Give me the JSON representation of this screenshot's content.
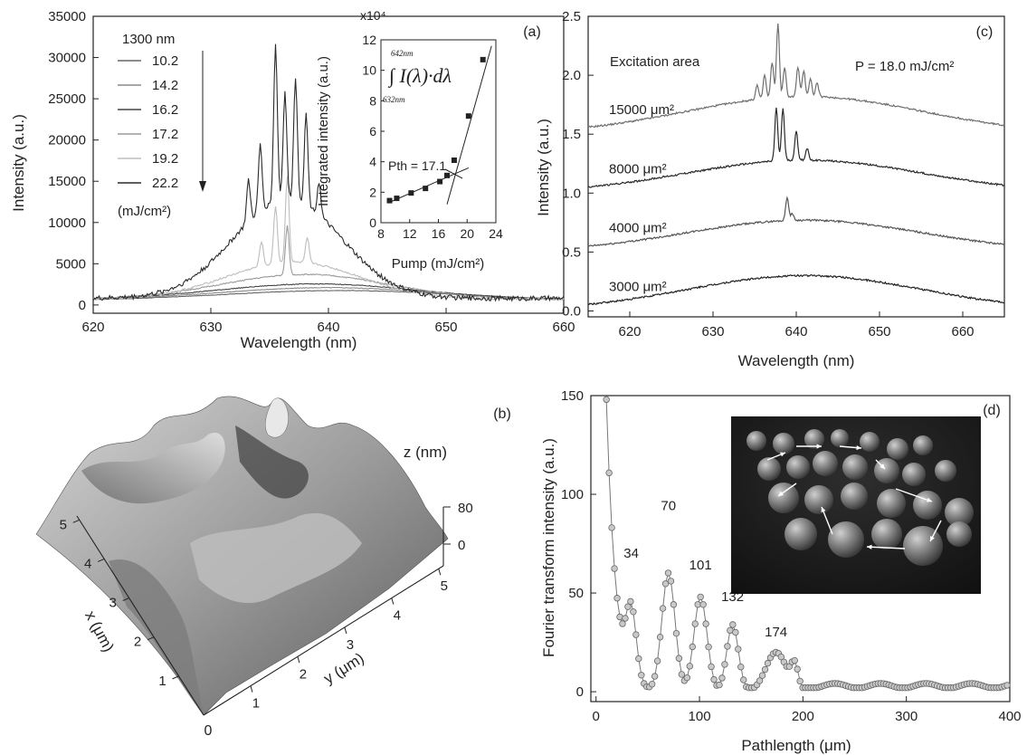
{
  "figure": {
    "panel_labels": [
      "(a)",
      "(b)",
      "(c)",
      "(d)"
    ]
  },
  "chart_data": [
    {
      "panel": "(a)",
      "type": "line",
      "xlabel": "Wavelength (nm)",
      "ylabel": "Intensity (a.u.)",
      "xlim": [
        620,
        660
      ],
      "ylim": [
        -1000,
        35000
      ],
      "xticks": [
        620,
        630,
        640,
        650,
        660
      ],
      "yticks": [
        0,
        5000,
        10000,
        15000,
        20000,
        25000,
        30000,
        35000
      ],
      "legend_title": "1300 nm",
      "legend_unit": "(mJ/cm²)",
      "series": [
        {
          "name": "10.2",
          "color": "#666666",
          "center": 641,
          "amp": 1200,
          "width": 14,
          "base": 550,
          "peaks": []
        },
        {
          "name": "14.2",
          "color": "#8a8a8a",
          "center": 640,
          "amp": 1500,
          "width": 13,
          "base": 600,
          "peaks": []
        },
        {
          "name": "16.2",
          "color": "#444444",
          "center": 639,
          "amp": 1900,
          "width": 12,
          "base": 650,
          "peaks": []
        },
        {
          "name": "17.2",
          "color": "#9a9a9a",
          "center": 638,
          "amp": 3000,
          "width": 10,
          "base": 700,
          "peaks": [
            [
              636.5,
              6000
            ]
          ]
        },
        {
          "name": "19.2",
          "color": "#bdbdbd",
          "center": 637,
          "amp": 4500,
          "width": 8,
          "base": 700,
          "peaks": [
            [
              634.3,
              3000
            ],
            [
              635.5,
              7000
            ],
            [
              636.5,
              10500
            ],
            [
              638.2,
              3000
            ]
          ]
        },
        {
          "name": "22.2",
          "color": "#2a2a2a",
          "center": 636.5,
          "amp": 12000,
          "width": 6.5,
          "base": 800,
          "peaks": [
            [
              633.2,
              5000
            ],
            [
              634.2,
              8000
            ],
            [
              635.5,
              19000
            ],
            [
              636.3,
              13000
            ],
            [
              637.2,
              15000
            ],
            [
              638.1,
              11000
            ],
            [
              639.2,
              4000
            ]
          ]
        }
      ],
      "inset": {
        "xlabel": "Pump (mJ/cm²)",
        "ylabel": "Integrated intensity (a.u.)",
        "multiplier": "x10⁴",
        "xlim": [
          8,
          24
        ],
        "ylim": [
          0,
          12
        ],
        "xticks": [
          8,
          12,
          16,
          20,
          24
        ],
        "yticks": [
          0,
          2,
          4,
          6,
          8,
          10,
          12
        ],
        "formula": "∫ I(λ)·dλ",
        "formula_upper": "642nm",
        "formula_lower": "632nm",
        "threshold_label": "Pth = 17.1",
        "threshold": 17.1,
        "points_x": [
          9.2,
          10.2,
          12.2,
          14.2,
          16.2,
          17.2,
          18.2,
          20.2,
          22.2
        ],
        "points_y": [
          1.45,
          1.6,
          1.95,
          2.25,
          2.7,
          3.1,
          4.1,
          7.0,
          10.7
        ]
      }
    },
    {
      "panel": "(b)",
      "type": "surface",
      "xlabel": "x (μm)",
      "ylabel": "y (μm)",
      "zlabel": "z (nm)",
      "x_ticks": [
        1,
        2,
        3,
        4,
        5
      ],
      "y_ticks": [
        1,
        2,
        3,
        4,
        5
      ],
      "z_ticks": [
        0,
        80
      ],
      "origin_label": "0"
    },
    {
      "panel": "(c)",
      "type": "line",
      "xlabel": "Wavelength (nm)",
      "ylabel": "Intensity (a.u.)",
      "xlim": [
        615,
        665
      ],
      "ylim": [
        -0.05,
        2.5
      ],
      "xticks": [
        620,
        630,
        640,
        650,
        660
      ],
      "yticks": [
        0.0,
        0.5,
        1.0,
        1.5,
        2.0,
        2.5
      ],
      "annotation_title": "Excitation area",
      "annotation_pump": "P = 18.0 mJ/cm²",
      "series": [
        {
          "name": "15000 μm²",
          "color": "#6f6f6f",
          "base": 1.5,
          "amp": 0.32,
          "peaks": [
            [
              635.3,
              0.12
            ],
            [
              636.2,
              0.2
            ],
            [
              637.1,
              0.3
            ],
            [
              637.8,
              0.62
            ],
            [
              638.6,
              0.25
            ],
            [
              640.2,
              0.25
            ],
            [
              640.9,
              0.22
            ],
            [
              641.7,
              0.15
            ],
            [
              642.5,
              0.12
            ]
          ]
        },
        {
          "name": "8000 μm²",
          "color": "#2a2a2a",
          "base": 1.0,
          "amp": 0.28,
          "peaks": [
            [
              637.6,
              0.45
            ],
            [
              638.4,
              0.45
            ],
            [
              640.0,
              0.25
            ],
            [
              641.3,
              0.1
            ]
          ]
        },
        {
          "name": "4000 μm²",
          "color": "#555555",
          "base": 0.5,
          "amp": 0.27,
          "peaks": [
            [
              638.9,
              0.2
            ],
            [
              639.5,
              0.06
            ]
          ]
        },
        {
          "name": "3000 μm²",
          "color": "#222222",
          "base": 0.0,
          "amp": 0.3,
          "peaks": []
        }
      ]
    },
    {
      "panel": "(d)",
      "type": "scatter",
      "xlabel": "Pathlength (μm)",
      "ylabel": "Fourier transform intensity (a.u.)",
      "xlim": [
        -5,
        400
      ],
      "ylim": [
        -5,
        150
      ],
      "xticks": [
        0,
        100,
        200,
        300,
        400
      ],
      "yticks": [
        0,
        50,
        100,
        150
      ],
      "peak_labels": [
        {
          "x": 34,
          "y": 68,
          "label": "34"
        },
        {
          "x": 70,
          "y": 92,
          "label": "70"
        },
        {
          "x": 101,
          "y": 62,
          "label": "101"
        },
        {
          "x": 132,
          "y": 46,
          "label": "132"
        },
        {
          "x": 174,
          "y": 28,
          "label": "174"
        }
      ]
    }
  ]
}
